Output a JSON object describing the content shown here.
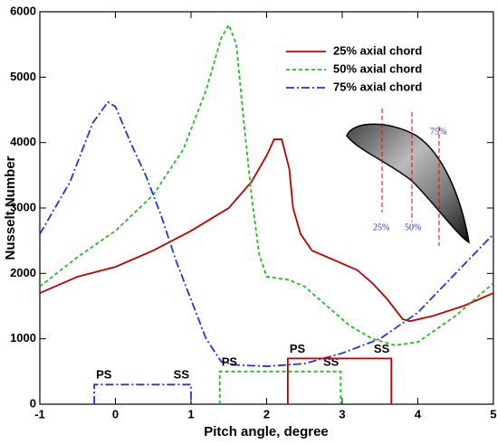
{
  "chart_data": {
    "type": "line",
    "xlabel": "Pitch angle, degree",
    "ylabel": "Nusselt Number",
    "xlim": [
      -1,
      5
    ],
    "ylim": [
      0,
      6000
    ],
    "xticks": [
      -1,
      0,
      1,
      2,
      3,
      4,
      5
    ],
    "yticks": [
      0,
      1000,
      2000,
      3000,
      4000,
      5000,
      6000
    ],
    "legend": "upper right",
    "series": [
      {
        "name": "25% axial chord",
        "color": "#c00000",
        "style": "solid",
        "x": [
          -1,
          -0.5,
          0,
          0.5,
          1,
          1.5,
          1.8,
          2.0,
          2.1,
          2.2,
          2.3,
          2.35,
          2.45,
          2.6,
          2.8,
          3.0,
          3.2,
          3.4,
          3.6,
          3.8,
          3.9,
          4.2,
          4.6,
          5
        ],
        "values": [
          1700,
          1950,
          2100,
          2350,
          2650,
          3000,
          3400,
          3800,
          4050,
          4050,
          3600,
          3000,
          2600,
          2350,
          2250,
          2150,
          2050,
          1850,
          1600,
          1300,
          1270,
          1350,
          1500,
          1700
        ]
      },
      {
        "name": "50% axial chord",
        "color": "#22bb22",
        "style": "dashed",
        "x": [
          -1,
          -0.5,
          0,
          0.5,
          0.9,
          1.2,
          1.4,
          1.5,
          1.6,
          1.7,
          1.8,
          1.9,
          2.0,
          2.3,
          2.5,
          2.8,
          3.1,
          3.4,
          3.7,
          4.0,
          4.5,
          5
        ],
        "values": [
          1800,
          2250,
          2650,
          3200,
          3900,
          4800,
          5600,
          5800,
          5500,
          4300,
          3200,
          2300,
          1950,
          1900,
          1800,
          1500,
          1200,
          1000,
          900,
          950,
          1350,
          1850
        ]
      },
      {
        "name": "75% axial chord",
        "color": "#2233dd",
        "style": "dashdot",
        "x": [
          -1,
          -0.6,
          -0.3,
          -0.1,
          0.0,
          0.2,
          0.4,
          0.6,
          0.8,
          1.0,
          1.2,
          1.4,
          1.6,
          2.0,
          2.5,
          3.0,
          3.5,
          4.0,
          4.5,
          5
        ],
        "values": [
          2600,
          3400,
          4300,
          4620,
          4550,
          4000,
          3500,
          2900,
          2200,
          1600,
          1000,
          650,
          600,
          580,
          620,
          780,
          1000,
          1400,
          2000,
          2600
        ]
      }
    ],
    "brackets": [
      {
        "series": 2,
        "x": [
          -0.28,
          1.0
        ],
        "y": 300,
        "labels": [
          "PS",
          "SS"
        ]
      },
      {
        "series": 1,
        "x": [
          1.38,
          2.98
        ],
        "y": 500,
        "labels": [
          "PS",
          "SS"
        ]
      },
      {
        "series": 0,
        "x": [
          2.28,
          3.65
        ],
        "y": 700,
        "labels": [
          "PS",
          "SS"
        ]
      }
    ],
    "inset_labels": [
      "25%",
      "50%",
      "75%"
    ]
  }
}
